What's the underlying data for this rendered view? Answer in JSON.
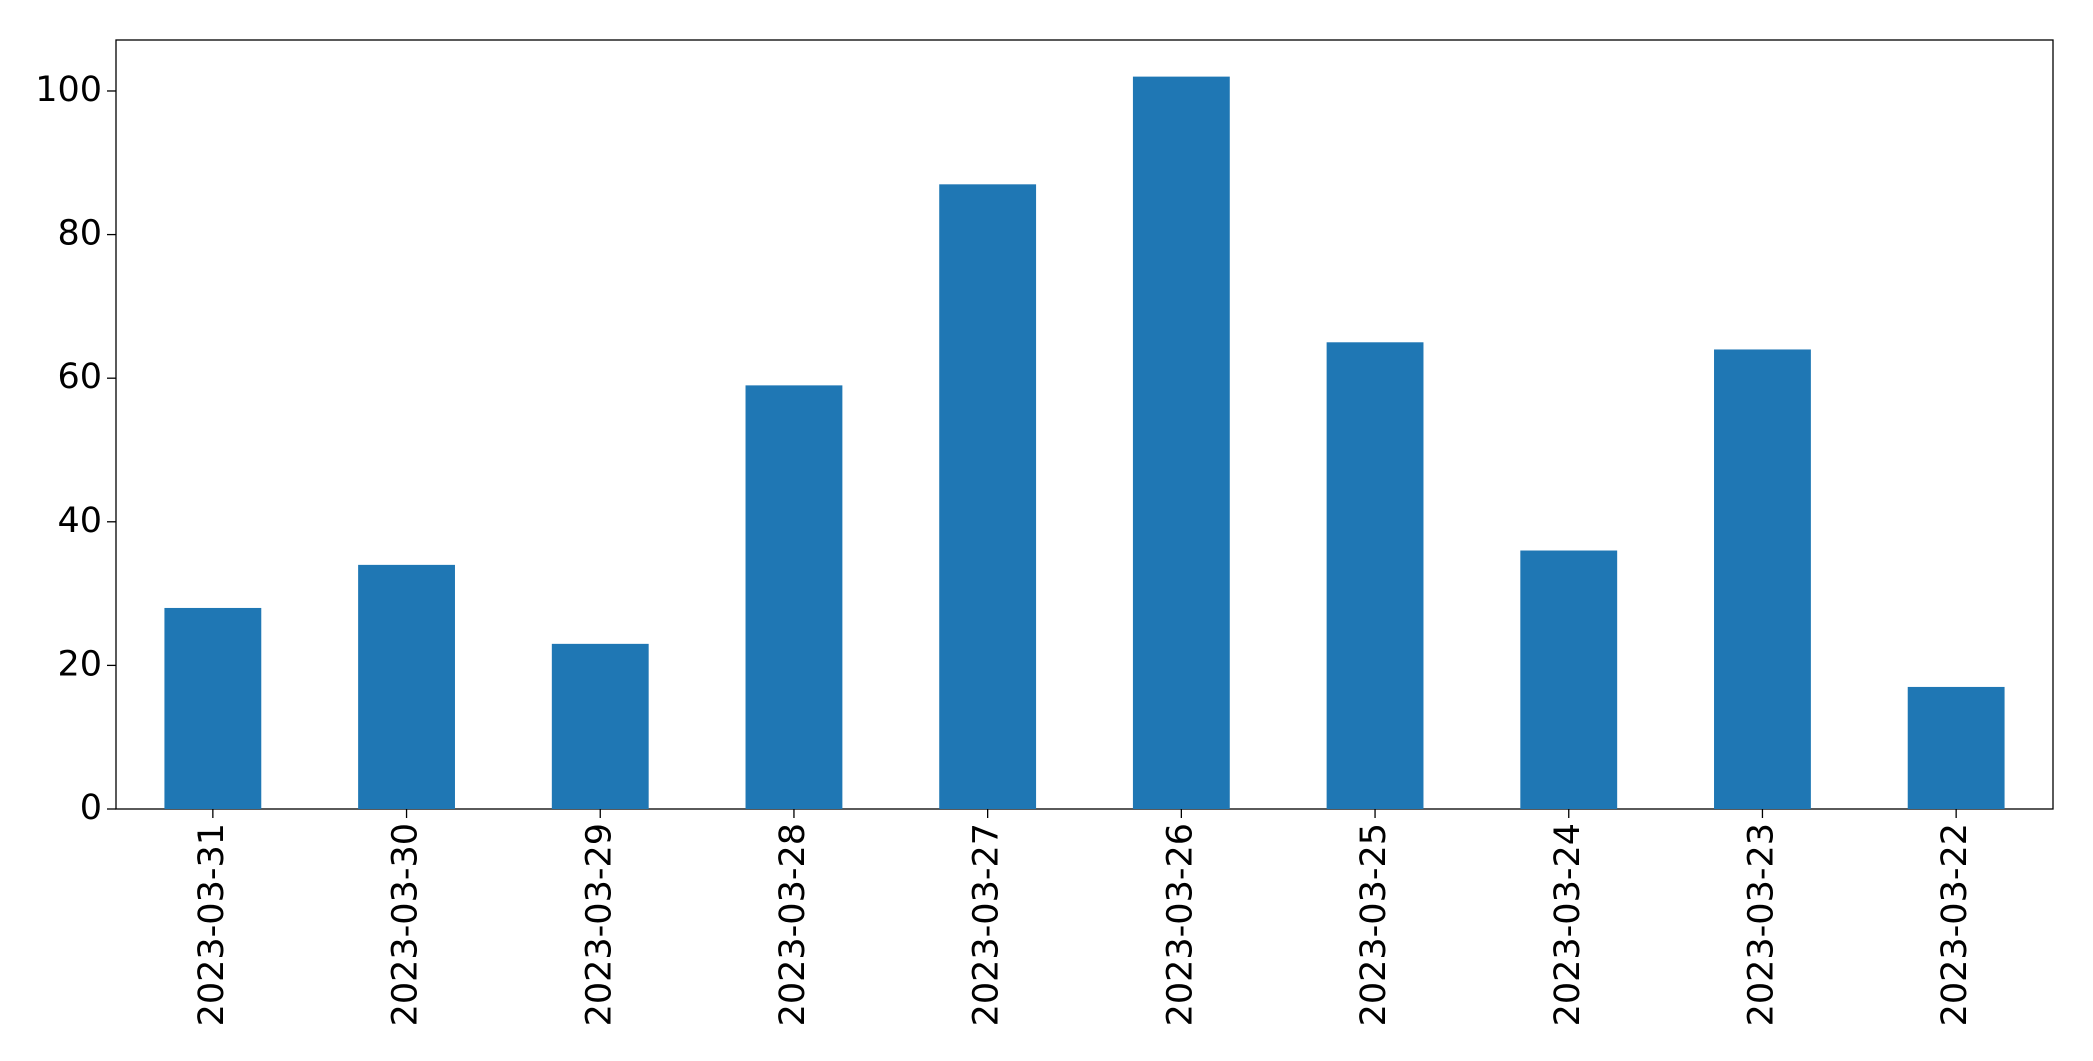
{
  "chart_data": {
    "type": "bar",
    "categories": [
      "2023-03-31",
      "2023-03-30",
      "2023-03-29",
      "2023-03-28",
      "2023-03-27",
      "2023-03-26",
      "2023-03-25",
      "2023-03-24",
      "2023-03-23",
      "2023-03-22"
    ],
    "values": [
      28,
      34,
      23,
      59,
      87,
      102,
      65,
      36,
      64,
      17
    ],
    "color": "#1f77b4",
    "ylim": [
      0,
      107.1
    ],
    "yticks": [
      0,
      20,
      40,
      60,
      80,
      100
    ],
    "grid": false
  }
}
